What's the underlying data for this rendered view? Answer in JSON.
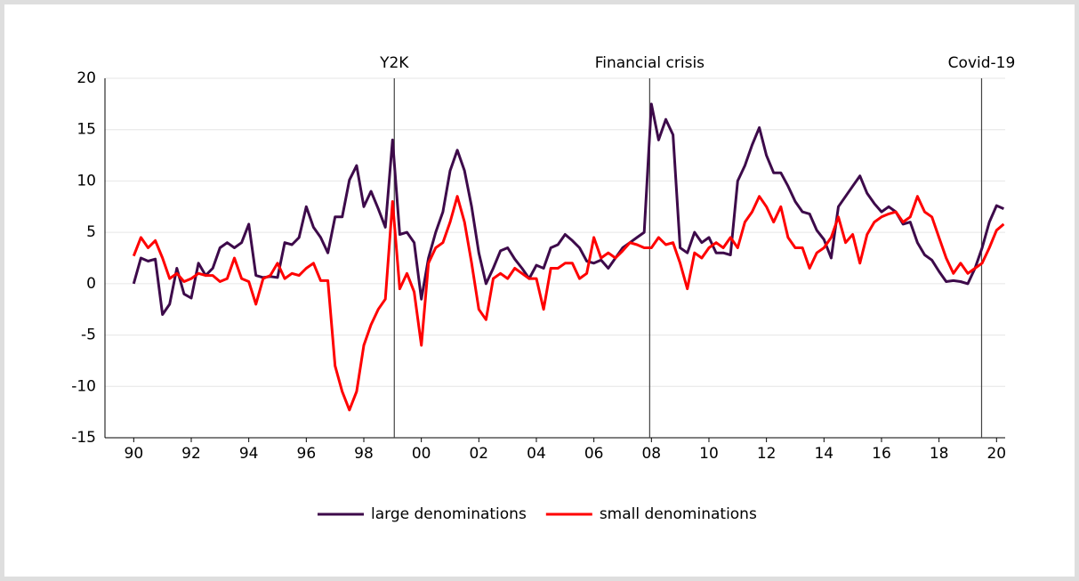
{
  "chart_data": {
    "type": "line",
    "xlim": [
      1989,
      2020.3
    ],
    "ylim": [
      -15,
      20
    ],
    "yticks": [
      -15,
      -10,
      -5,
      0,
      5,
      10,
      15,
      20
    ],
    "xticks": [
      {
        "value": 1990,
        "label": "90"
      },
      {
        "value": 1992,
        "label": "92"
      },
      {
        "value": 1994,
        "label": "94"
      },
      {
        "value": 1996,
        "label": "96"
      },
      {
        "value": 1998,
        "label": "98"
      },
      {
        "value": 2000,
        "label": "00"
      },
      {
        "value": 2002,
        "label": "02"
      },
      {
        "value": 2004,
        "label": "04"
      },
      {
        "value": 2006,
        "label": "06"
      },
      {
        "value": 2008,
        "label": "08"
      },
      {
        "value": 2010,
        "label": "10"
      },
      {
        "value": 2012,
        "label": "12"
      },
      {
        "value": 2014,
        "label": "14"
      },
      {
        "value": 2016,
        "label": "16"
      },
      {
        "value": 2018,
        "label": "18"
      },
      {
        "value": 2020,
        "label": "20"
      }
    ],
    "grid": true,
    "legend": "bottom",
    "annotations": [
      {
        "text": "Y2K",
        "x": 1999.06
      },
      {
        "text": "Financial crisis",
        "x": 2007.94
      },
      {
        "text": "Covid-19",
        "x": 2019.48
      }
    ],
    "x": [
      1990,
      1990.25,
      1990.5,
      1990.75,
      1991,
      1991.25,
      1991.5,
      1991.75,
      1992,
      1992.25,
      1992.5,
      1992.75,
      1993,
      1993.25,
      1993.5,
      1993.75,
      1994,
      1994.25,
      1994.5,
      1994.75,
      1995,
      1995.25,
      1995.5,
      1995.75,
      1996,
      1996.25,
      1996.5,
      1996.75,
      1997,
      1997.25,
      1997.5,
      1997.75,
      1998,
      1998.25,
      1998.5,
      1998.75,
      1999,
      1999.25,
      1999.5,
      1999.75,
      2000,
      2000.25,
      2000.5,
      2000.75,
      2001,
      2001.25,
      2001.5,
      2001.75,
      2002,
      2002.25,
      2002.5,
      2002.75,
      2003,
      2003.25,
      2003.5,
      2003.75,
      2004,
      2004.25,
      2004.5,
      2004.75,
      2005,
      2005.25,
      2005.5,
      2005.75,
      2006,
      2006.25,
      2006.5,
      2006.75,
      2007,
      2007.25,
      2007.5,
      2007.75,
      2008,
      2008.25,
      2008.5,
      2008.75,
      2009,
      2009.25,
      2009.5,
      2009.75,
      2010,
      2010.25,
      2010.5,
      2010.75,
      2011,
      2011.25,
      2011.5,
      2011.75,
      2012,
      2012.25,
      2012.5,
      2012.75,
      2013,
      2013.25,
      2013.5,
      2013.75,
      2014,
      2014.25,
      2014.5,
      2014.75,
      2015,
      2015.25,
      2015.5,
      2015.75,
      2016,
      2016.25,
      2016.5,
      2016.75,
      2017,
      2017.25,
      2017.5,
      2017.75,
      2018,
      2018.25,
      2018.5,
      2018.75,
      2019,
      2019.25,
      2019.5,
      2019.75,
      2020,
      2020.25
    ],
    "series": [
      {
        "name": "large denominations",
        "color": "#3d0a4a",
        "values": [
          0,
          2.5,
          2.2,
          2.4,
          -3,
          -2,
          1.5,
          -1,
          -1.4,
          2,
          0.8,
          1.5,
          3.5,
          4,
          3.5,
          4,
          5.8,
          0.8,
          0.6,
          0.7,
          0.6,
          4,
          3.8,
          4.5,
          7.5,
          5.5,
          4.5,
          3,
          6.5,
          6.5,
          10.1,
          11.5,
          7.5,
          9,
          7.3,
          5.5,
          14,
          4.8,
          5,
          4,
          -1.5,
          2.5,
          5,
          7,
          11,
          13,
          11,
          7.5,
          3,
          0,
          1.5,
          3.2,
          3.5,
          2.4,
          1.5,
          0.5,
          1.8,
          1.5,
          3.5,
          3.8,
          4.8,
          4.2,
          3.5,
          2.2,
          2,
          2.3,
          1.5,
          2.5,
          3.5,
          4,
          4.5,
          5,
          17.5,
          14,
          16,
          14.5,
          3.5,
          3,
          5,
          4,
          4.5,
          3,
          3,
          2.8,
          10,
          11.5,
          13.5,
          15.2,
          12.5,
          10.8,
          10.8,
          9.5,
          8,
          7,
          6.8,
          5.2,
          4.3,
          2.5,
          7.5,
          8.5,
          9.5,
          10.5,
          8.8,
          7.8,
          7,
          7.5,
          7,
          5.8,
          6,
          4,
          2.8,
          2.3,
          1.2,
          0.2,
          0.3,
          0.2,
          0,
          1.5,
          3.5,
          6,
          7.6,
          7.3
        ]
      },
      {
        "name": "small denominations",
        "color": "#ff0000",
        "values": [
          2.7,
          4.5,
          3.5,
          4.2,
          2.5,
          0.5,
          1,
          0.2,
          0.5,
          1,
          0.8,
          0.8,
          0.2,
          0.5,
          2.5,
          0.5,
          0.2,
          -2,
          0.5,
          0.8,
          2,
          0.5,
          1,
          0.8,
          1.5,
          2,
          0.3,
          0.3,
          -8,
          -10.5,
          -12.3,
          -10.5,
          -6,
          -4,
          -2.5,
          -1.5,
          8,
          -0.5,
          1,
          -0.8,
          -6,
          2,
          3.5,
          4,
          6,
          8.5,
          6,
          2,
          -2.5,
          -3.5,
          0.5,
          1,
          0.5,
          1.5,
          1,
          0.5,
          0.5,
          -2.5,
          1.5,
          1.5,
          2,
          2,
          0.5,
          1,
          4.5,
          2.5,
          3,
          2.5,
          3.2,
          4,
          3.8,
          3.5,
          3.5,
          4.5,
          3.8,
          4,
          2,
          -0.5,
          3,
          2.5,
          3.5,
          4,
          3.5,
          4.5,
          3.5,
          6,
          7,
          8.5,
          7.5,
          6,
          7.5,
          4.5,
          3.5,
          3.5,
          1.5,
          3,
          3.5,
          4.5,
          6.5,
          4,
          4.8,
          2,
          4.8,
          6,
          6.5,
          6.8,
          7,
          6,
          6.5,
          8.5,
          7,
          6.5,
          4.5,
          2.5,
          1,
          2,
          1,
          1.5,
          2,
          3.5,
          5.2,
          5.8
        ]
      }
    ]
  }
}
